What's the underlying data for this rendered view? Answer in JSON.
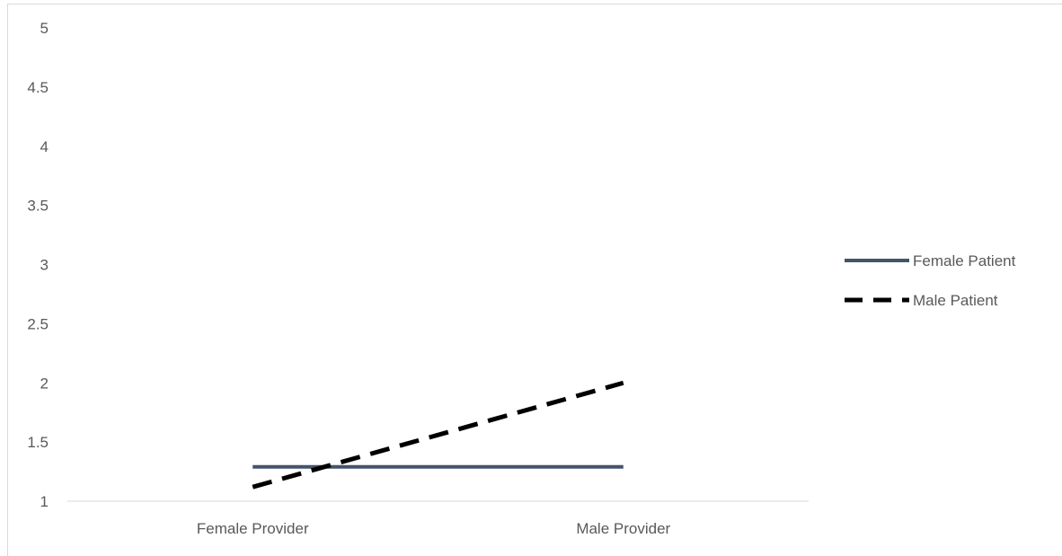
{
  "chart_data": {
    "type": "line",
    "title": "",
    "xlabel": "",
    "ylabel": "",
    "categories": [
      "Female Provider",
      "Male Provider"
    ],
    "ylim": [
      1,
      5
    ],
    "yticks": [
      "1",
      "1.5",
      "2",
      "2.5",
      "3",
      "3.5",
      "4",
      "4.5",
      "5"
    ],
    "grid": false,
    "legend_position": "right",
    "series": [
      {
        "name": "Female Patient",
        "values": [
          1.29,
          1.29
        ],
        "color": "#44546a",
        "style": "solid"
      },
      {
        "name": "Male Patient",
        "values": [
          1.12,
          2.0
        ],
        "color": "#000000",
        "style": "dashed"
      }
    ]
  }
}
